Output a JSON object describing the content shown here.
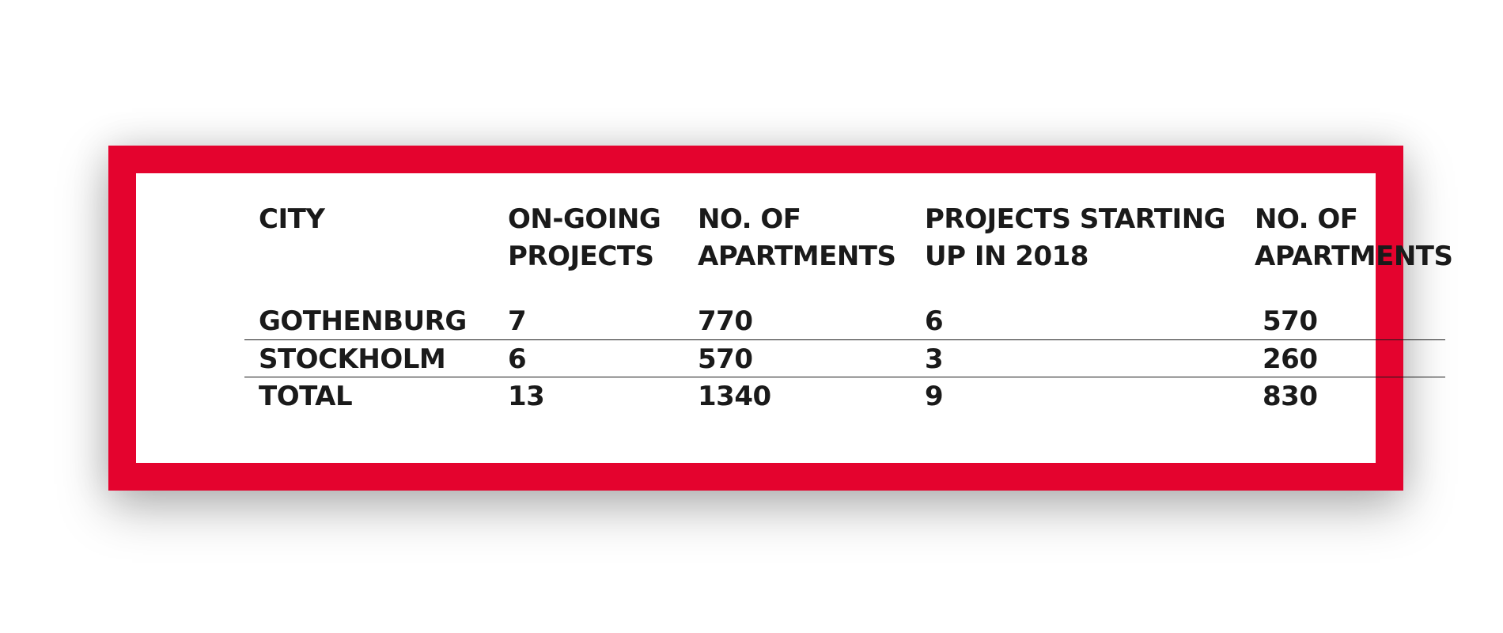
{
  "table": {
    "headers": [
      "CITY",
      "ON-GOING\nPROJECTS",
      "NO. OF\nAPARTMENTS",
      "PROJECTS STARTING\nUP IN  2018",
      "NO. OF\nAPARTMENTS"
    ],
    "rows": [
      [
        "GOTHENBURG",
        "7",
        "770",
        "6",
        "570"
      ],
      [
        "STOCKHOLM",
        "6",
        "570",
        "3",
        "260"
      ],
      [
        "TOTAL",
        "13",
        "1340",
        "9",
        "830"
      ]
    ]
  },
  "colors": {
    "frame": "#e4032e",
    "text": "#1a1a1a",
    "background": "#ffffff"
  }
}
